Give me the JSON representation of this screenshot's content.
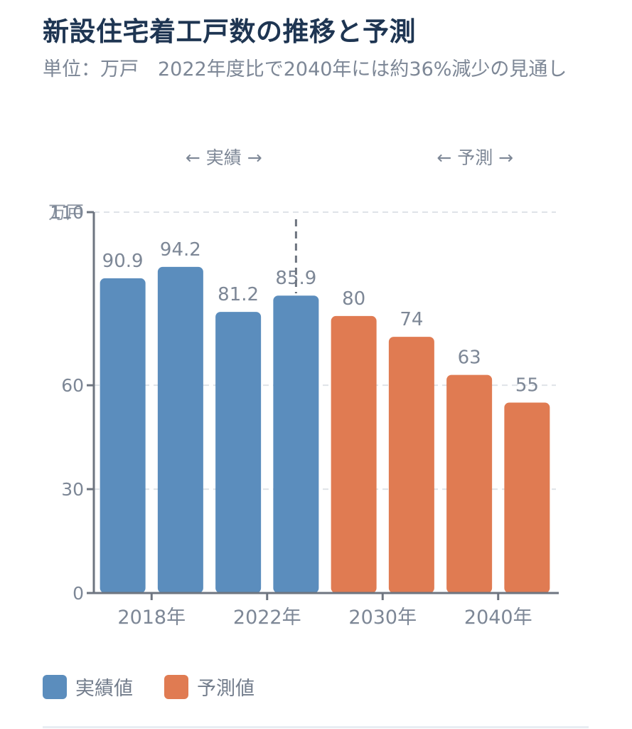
{
  "title": "新設住宅着工戸数の推移と予測",
  "subtitle": "単位：万戸　2022年度比で2040年には約36%減少の見通し",
  "colors": {
    "actual": "#5b8dbd",
    "forecast": "#e07b52",
    "text": "#7d8796",
    "axis": "#6e7580",
    "grid": "#dfe3e8",
    "title": "#1e3552"
  },
  "chart_data": {
    "type": "bar",
    "title": "新設住宅着工戸数の推移と予測",
    "ylabel": "万戸",
    "ylim": [
      0,
      110
    ],
    "yticks": [
      0,
      30,
      60,
      110
    ],
    "grid": true,
    "section_labels": [
      "← 実績 →",
      "← 予測 →"
    ],
    "xtick_labels": [
      "2018年",
      "2022年",
      "2030年",
      "2040年"
    ],
    "bars": [
      {
        "value": 90.9,
        "series": "actual",
        "label": "90.9"
      },
      {
        "value": 94.2,
        "series": "actual",
        "label": "94.2"
      },
      {
        "value": 81.2,
        "series": "actual",
        "label": "81.2"
      },
      {
        "value": 85.9,
        "series": "actual",
        "label": "85.9"
      },
      {
        "value": 80,
        "series": "forecast",
        "label": "80"
      },
      {
        "value": 74,
        "series": "forecast",
        "label": "74"
      },
      {
        "value": 63,
        "series": "forecast",
        "label": "63"
      },
      {
        "value": 55,
        "series": "forecast",
        "label": "55"
      }
    ],
    "legend": [
      {
        "series": "actual",
        "label": "実績値"
      },
      {
        "series": "forecast",
        "label": "予測値"
      }
    ],
    "legend_position": "bottom-left"
  }
}
